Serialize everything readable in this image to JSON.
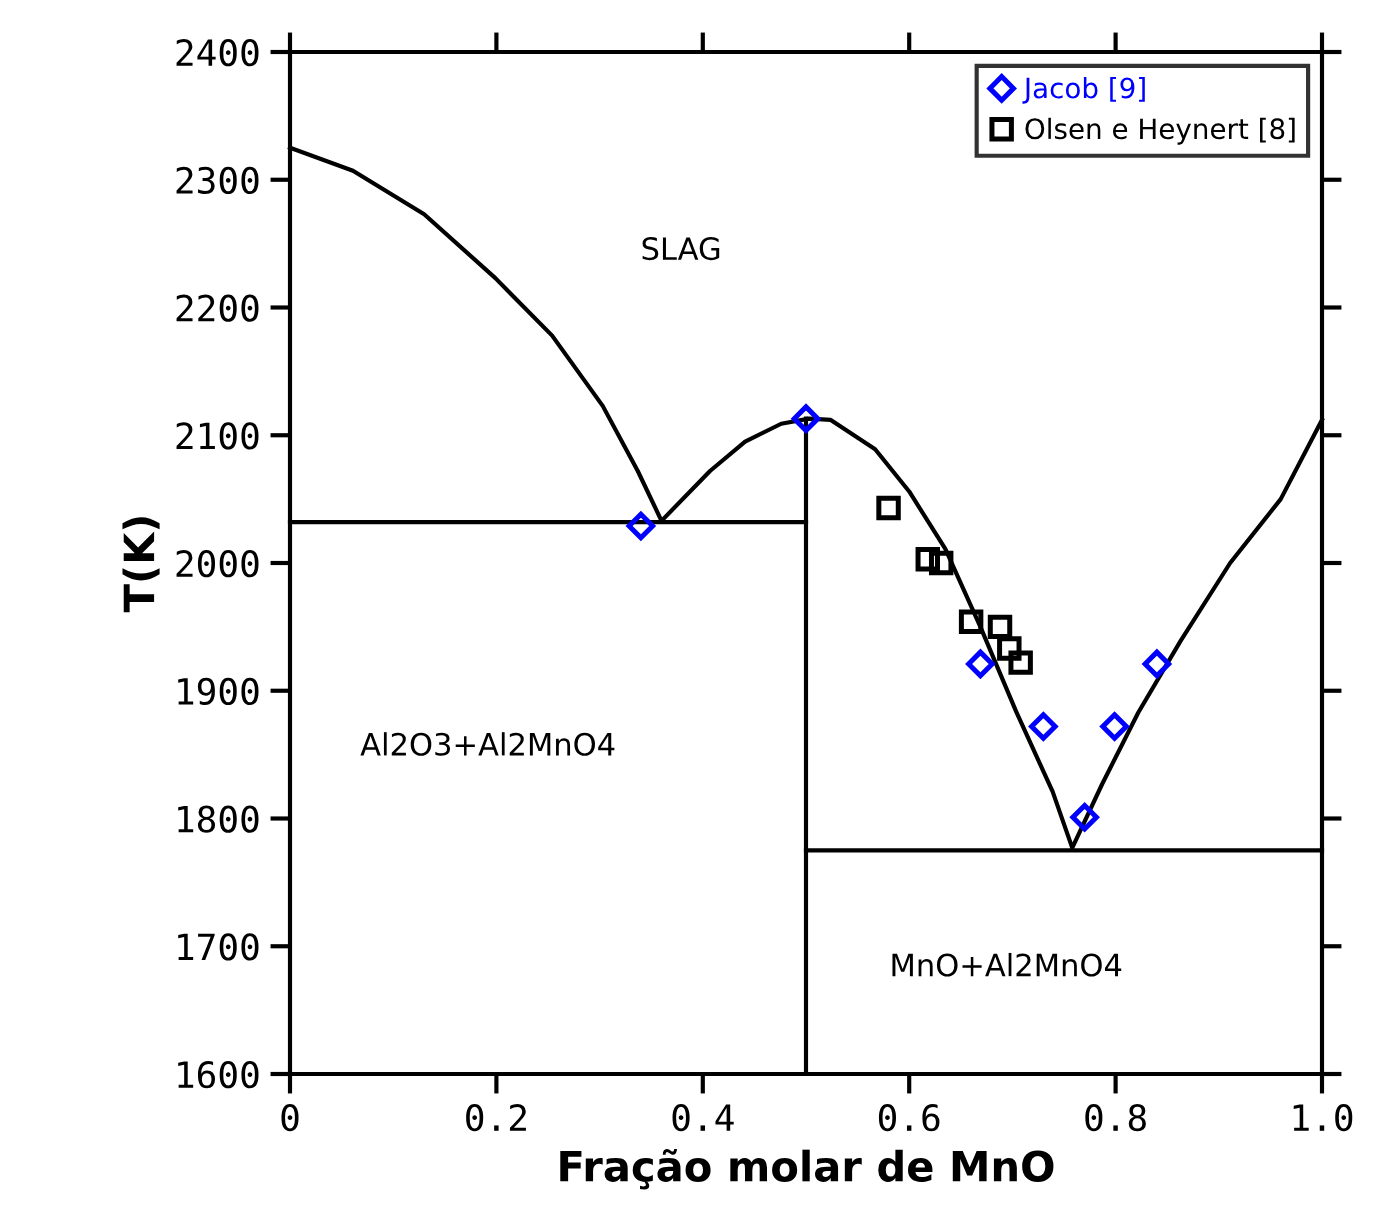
{
  "chart_data": {
    "type": "line",
    "xlabel": "Fração molar de MnO",
    "ylabel": "T(K)",
    "xlim": [
      0,
      1
    ],
    "xticks": [
      {
        "value": 0,
        "label": "0"
      },
      0.2,
      0.4,
      0.6,
      0.8,
      {
        "value": 1,
        "label": "1.0"
      }
    ],
    "ylim": [
      1600,
      2400
    ],
    "yticks": [
      1600,
      1700,
      1800,
      1900,
      2000,
      2100,
      2200,
      2300,
      2400
    ],
    "grid": false,
    "legend": "top right",
    "series": [
      {
        "color": "#000000",
        "marker": "none",
        "line_style": "solid",
        "x": [
          0,
          0.061,
          0.13,
          0.199,
          0.254,
          0.303,
          0.337,
          0.36,
          0.407,
          0.441,
          0.476,
          0.503,
          0.524,
          0.567,
          0.6,
          0.635,
          0.669,
          0.704,
          0.739,
          0.758,
          0.787,
          0.822,
          0.863,
          0.911,
          0.96,
          1.0
        ],
        "values": [
          2325,
          2307,
          2273,
          2223,
          2178,
          2123,
          2072,
          2033,
          2072,
          2095,
          2109,
          2113,
          2112,
          2089,
          2056,
          2011,
          1950,
          1883,
          1821,
          1777,
          1827,
          1883,
          1939,
          2000,
          2050,
          2112
        ]
      },
      {
        "color": "#000000",
        "marker": "none",
        "line_style": "solid",
        "x": [
          0,
          0.5
        ],
        "values": [
          2032,
          2032
        ]
      },
      {
        "color": "#000000",
        "marker": "none",
        "line_style": "solid",
        "x": [
          0.5,
          0.5
        ],
        "values": [
          1600,
          2113
        ]
      },
      {
        "color": "#000000",
        "marker": "none",
        "line_style": "solid",
        "x": [
          0.5,
          1.0
        ],
        "values": [
          1775,
          1775
        ]
      },
      {
        "type": "scatter",
        "name": "Jacob [9]",
        "color": "#0000ff",
        "marker": "diamond",
        "x": [
          0.34,
          0.5,
          0.669,
          0.73,
          0.77,
          0.799,
          0.84
        ],
        "values": [
          2029,
          2113,
          1921,
          1872,
          1801,
          1872,
          1921
        ]
      },
      {
        "type": "scatter",
        "name": "Olsen e Heynert [8]",
        "color": "#000000",
        "marker": "square",
        "x": [
          0.58,
          0.618,
          0.631,
          0.66,
          0.688,
          0.697,
          0.708
        ],
        "values": [
          2043,
          2003,
          2000,
          1954,
          1950,
          1933,
          1922
        ]
      }
    ],
    "annotations": [
      "SLAG",
      "Al2O3+Al2MnO4",
      "MnO+Al2MnO4"
    ]
  }
}
